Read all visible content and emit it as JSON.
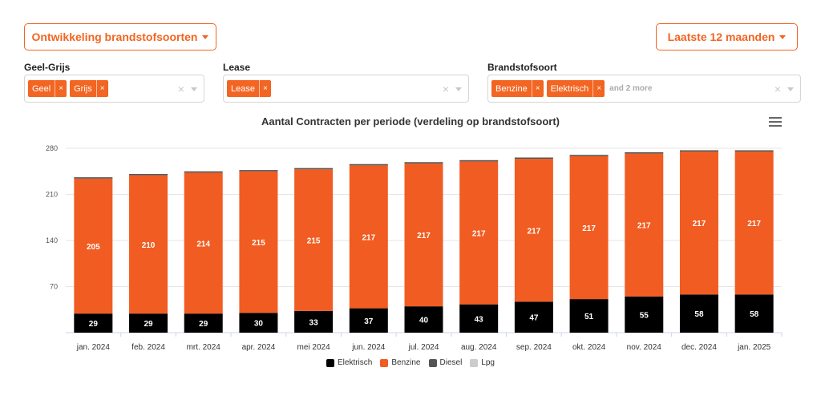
{
  "controls": {
    "view_label": "Ontwikkeling brandstofsoorten",
    "period_label": "Laatste 12 maanden"
  },
  "filters": {
    "geel_grijs": {
      "label": "Geel-Grijs",
      "tags": [
        "Geel",
        "Grijs"
      ]
    },
    "lease": {
      "label": "Lease",
      "tags": [
        "Lease"
      ]
    },
    "brandstof": {
      "label": "Brandstofsoort",
      "tags": [
        "Benzine",
        "Elektrisch"
      ],
      "more": "and 2 more"
    },
    "tag_remove": "×",
    "clear": "×"
  },
  "colors": {
    "accent": "#f26522",
    "elektrisch": "#000000",
    "benzine": "#f15c22",
    "diesel": "#555555",
    "lpg": "#cccccc"
  },
  "chart_data": {
    "type": "bar",
    "stacked": true,
    "title": "Aantal Contracten per periode (verdeling op brandstofsoort)",
    "categories": [
      "jan. 2024",
      "feb. 2024",
      "mrt. 2024",
      "apr. 2024",
      "mei 2024",
      "jun. 2024",
      "jul. 2024",
      "aug. 2024",
      "sep. 2024",
      "okt. 2024",
      "nov. 2024",
      "dec. 2024",
      "jan. 2025"
    ],
    "series": [
      {
        "name": "Elektrisch",
        "values": [
          29,
          29,
          29,
          30,
          33,
          37,
          40,
          43,
          47,
          51,
          55,
          58,
          58
        ],
        "show_labels": true
      },
      {
        "name": "Benzine",
        "values": [
          205,
          210,
          214,
          215,
          215,
          217,
          217,
          217,
          217,
          217,
          217,
          217,
          217
        ],
        "show_labels": true
      },
      {
        "name": "Diesel",
        "values": [
          2,
          2,
          2,
          2,
          2,
          2,
          2,
          2,
          2,
          2,
          2,
          2,
          2
        ],
        "show_labels": false
      },
      {
        "name": "Lpg",
        "values": [
          0,
          0,
          0,
          0,
          0,
          0,
          0,
          0,
          0,
          0,
          0,
          0,
          0
        ],
        "show_labels": false
      }
    ],
    "yticks": [
      70,
      140,
      210,
      280
    ],
    "ylim": [
      0,
      280
    ],
    "grid": true,
    "legend": "bottom-center"
  }
}
